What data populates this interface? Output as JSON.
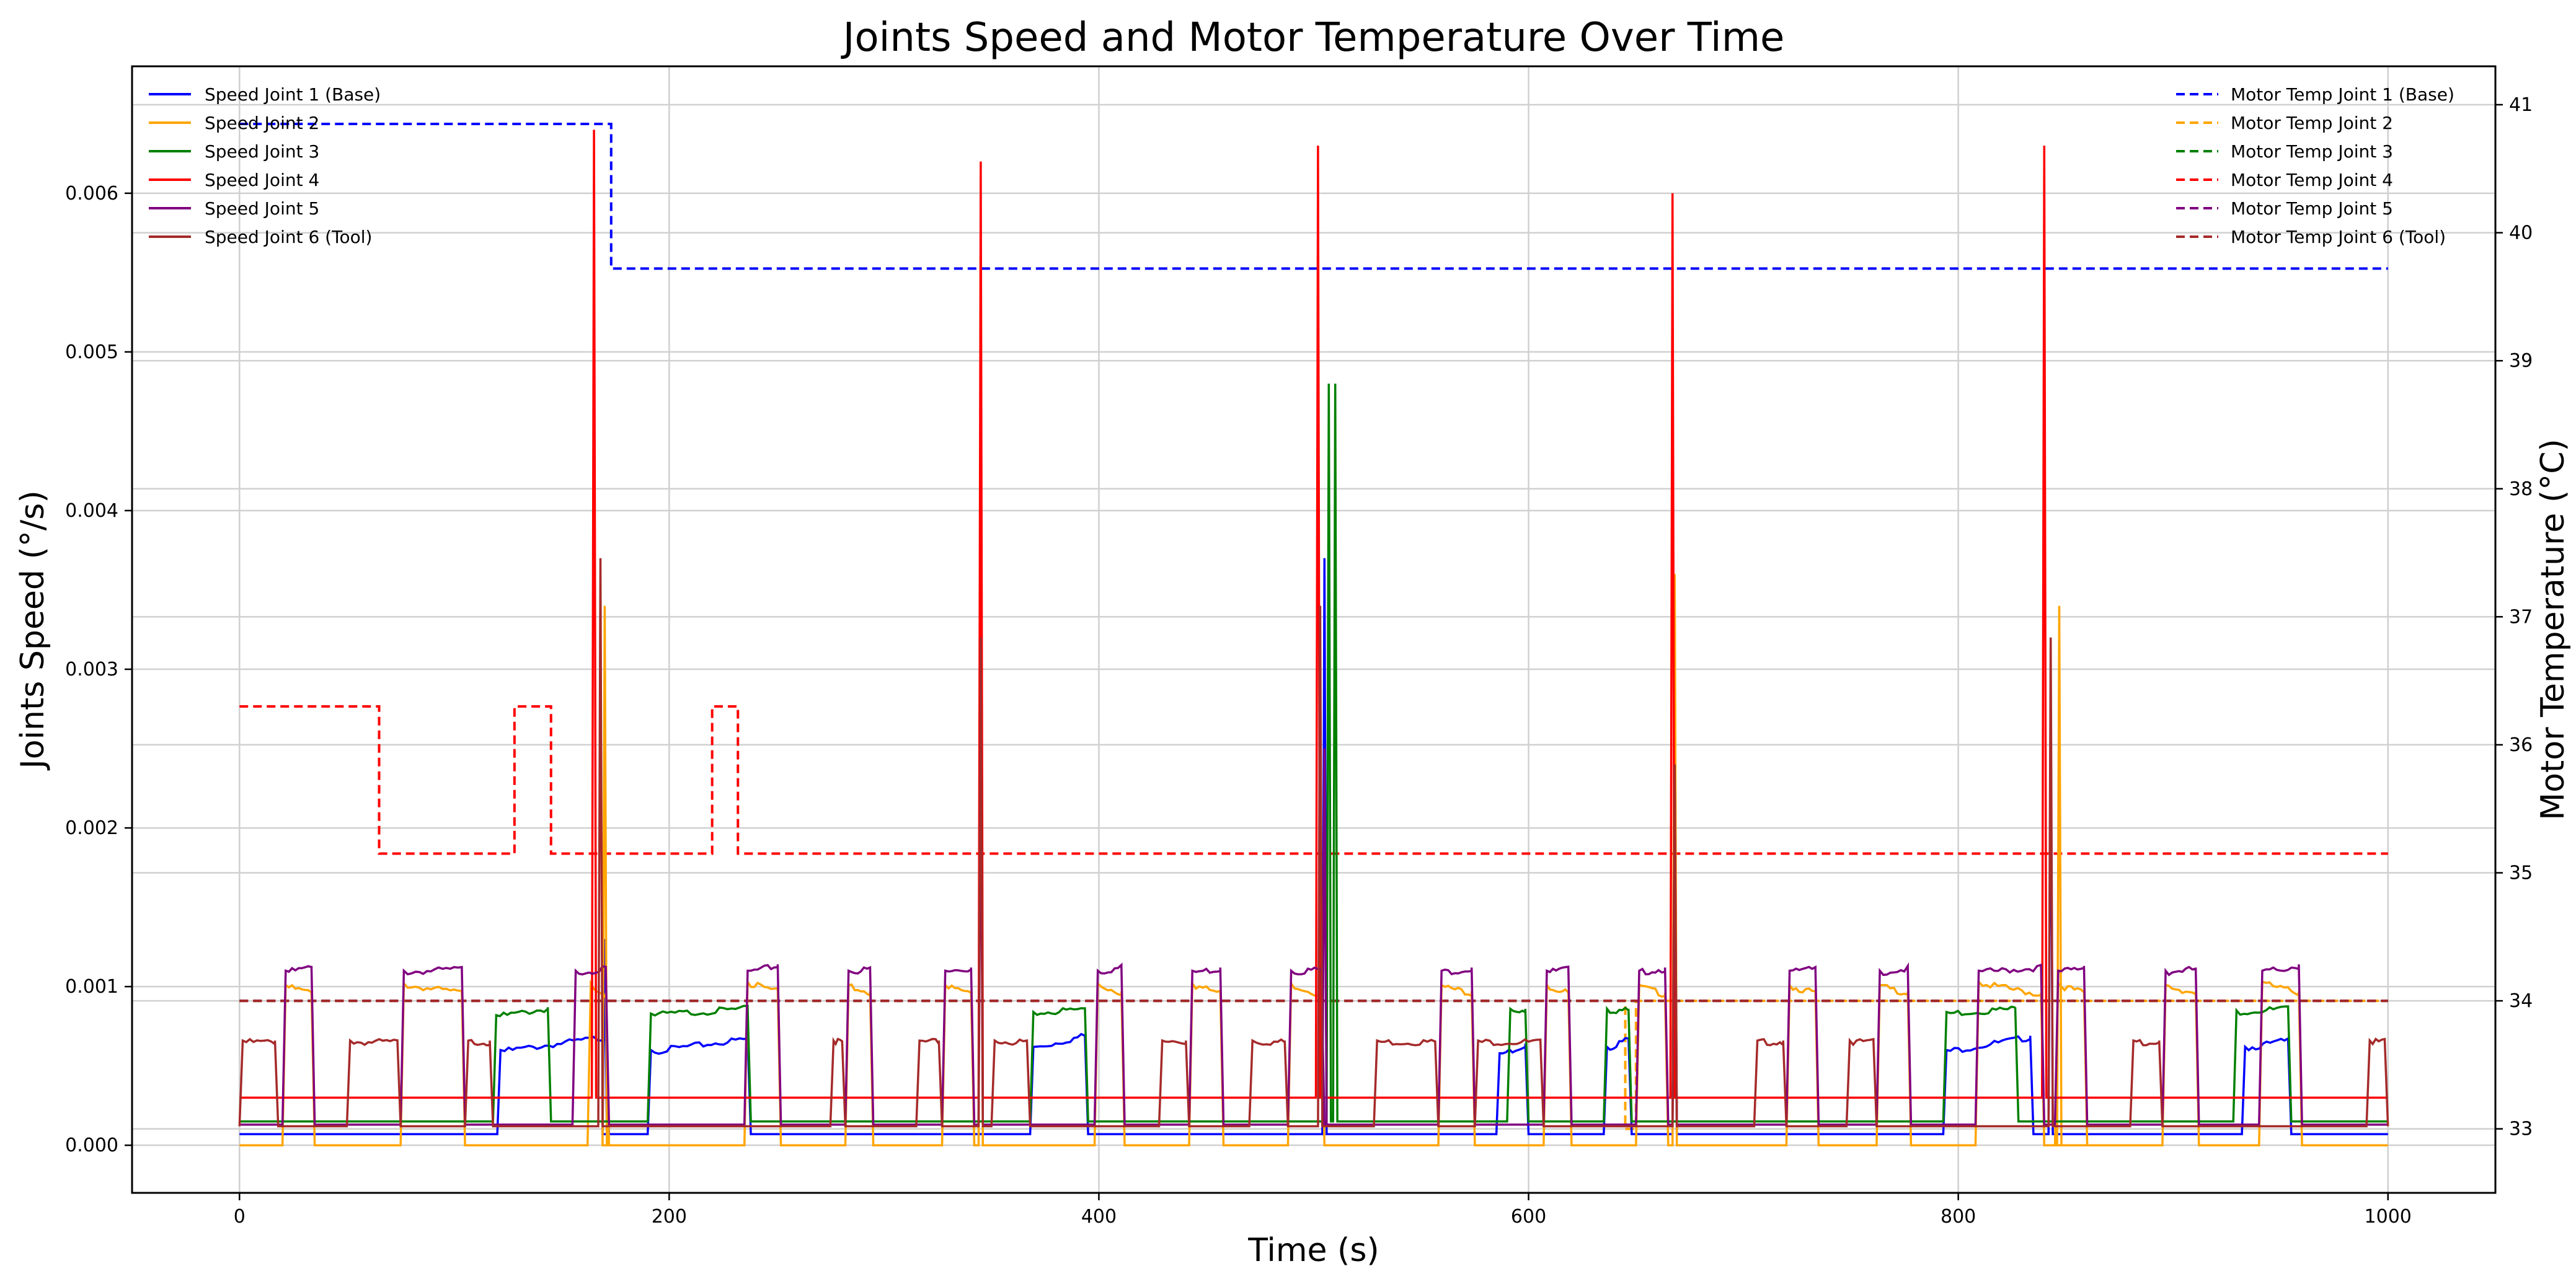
{
  "chart_data": {
    "type": "line",
    "title": "Joints Speed and Motor Temperature Over Time",
    "xlabel": "Time (s)",
    "ylabel_left": "Joints Speed (°/s)",
    "ylabel_right": "Motor Temperature (°C)",
    "xlim": [
      -50,
      1050
    ],
    "ylim_left": [
      -0.0003,
      0.0068
    ],
    "ylim_right": [
      32.5,
      41.3
    ],
    "xticks": [
      "0",
      "200",
      "400",
      "600",
      "800",
      "1000"
    ],
    "yticks_left": [
      "0.000",
      "0.001",
      "0.002",
      "0.003",
      "0.004",
      "0.005",
      "0.006"
    ],
    "yticks_right": [
      "33",
      "34",
      "35",
      "36",
      "37",
      "38",
      "39",
      "40",
      "41"
    ],
    "grid": true,
    "legend_left_placement": "top-left",
    "legend_right_placement": "top-right",
    "speed_series": [
      {
        "name": "Speed Joint 1 (Base)",
        "color": "#0000ff",
        "blocks": [
          [
            120,
            172,
            0.0006,
            0.00069
          ],
          [
            190,
            238,
            0.0006,
            0.00068
          ],
          [
            368,
            395,
            0.00062,
            0.0007
          ],
          [
            585,
            600,
            0.00058,
            0.00064
          ],
          [
            635,
            648,
            0.00062,
            0.00068
          ],
          [
            793,
            835,
            0.0006,
            0.00069
          ],
          [
            932,
            955,
            0.00062,
            0.00067
          ]
        ],
        "low": 7e-05,
        "spikes": [
          [
            170,
            0.0013
          ],
          [
            505,
            0.0037
          ],
          [
            668,
            0.0022
          ],
          [
            843,
            0.0028
          ]
        ]
      },
      {
        "name": "Speed Joint 2",
        "color": "#ffa500",
        "blocks": [
          [
            20,
            35,
            0.00101,
            0.00097
          ],
          [
            75,
            105,
            0.00102,
            0.00097
          ],
          [
            162,
            172,
            0.00102,
            0.00096
          ],
          [
            235,
            252,
            0.00103,
            0.00098
          ],
          [
            282,
            295,
            0.00101,
            0.00097
          ],
          [
            327,
            342,
            0.00101,
            0.00097
          ],
          [
            398,
            412,
            0.00102,
            0.00097
          ],
          [
            442,
            458,
            0.00102,
            0.00097
          ],
          [
            488,
            505,
            0.00102,
            0.00096
          ],
          [
            558,
            575,
            0.00101,
            0.00097
          ],
          [
            607,
            620,
            0.00101,
            0.00097
          ],
          [
            650,
            665,
            0.00101,
            0.00096
          ],
          [
            720,
            735,
            0.00101,
            0.00097
          ],
          [
            762,
            778,
            0.00101,
            0.00097
          ],
          [
            808,
            840,
            0.00103,
            0.00096
          ],
          [
            845,
            860,
            0.00102,
            0.00097
          ],
          [
            895,
            912,
            0.00101,
            0.00097
          ],
          [
            940,
            960,
            0.00103,
            0.00097
          ]
        ],
        "low": 0.0,
        "spikes": [
          [
            170,
            0.0034
          ],
          [
            345,
            0.0035
          ],
          [
            668,
            0.0036
          ],
          [
            847,
            0.0034
          ]
        ]
      },
      {
        "name": "Speed Joint 3",
        "color": "#008000",
        "blocks": [
          [
            118,
            145,
            0.00082,
            0.00087
          ],
          [
            190,
            238,
            0.00083,
            0.00087
          ],
          [
            368,
            395,
            0.00084,
            0.00087
          ],
          [
            590,
            600,
            0.00086,
            0.00086
          ],
          [
            635,
            648,
            0.00086,
            0.00086
          ],
          [
            793,
            828,
            0.00084,
            0.00087
          ],
          [
            928,
            955,
            0.00085,
            0.00087
          ]
        ],
        "low": 0.00015,
        "spikes": [
          [
            507,
            0.0048
          ],
          [
            510,
            0.0048
          ]
        ]
      },
      {
        "name": "Speed Joint 4",
        "color": "#ff0000",
        "blocks": [],
        "low": 0.0003,
        "spikes": [
          [
            165,
            0.0064
          ],
          [
            345,
            0.0062
          ],
          [
            502,
            0.0063
          ],
          [
            667,
            0.006
          ],
          [
            840,
            0.0063
          ]
        ]
      },
      {
        "name": "Speed Joint 5",
        "color": "#800080",
        "blocks": [
          [
            20,
            35,
            0.0011,
            0.00113
          ],
          [
            75,
            105,
            0.0011,
            0.00112
          ],
          [
            155,
            172,
            0.0011,
            0.00112
          ],
          [
            235,
            252,
            0.0011,
            0.00114
          ],
          [
            282,
            295,
            0.0011,
            0.00112
          ],
          [
            327,
            342,
            0.0011,
            0.00112
          ],
          [
            398,
            412,
            0.0011,
            0.00113
          ],
          [
            442,
            458,
            0.0011,
            0.00112
          ],
          [
            488,
            505,
            0.0011,
            0.00112
          ],
          [
            558,
            575,
            0.0011,
            0.00112
          ],
          [
            607,
            620,
            0.0011,
            0.00112
          ],
          [
            650,
            665,
            0.0011,
            0.00112
          ],
          [
            720,
            735,
            0.0011,
            0.00112
          ],
          [
            762,
            778,
            0.0011,
            0.00112
          ],
          [
            808,
            840,
            0.0011,
            0.00113
          ],
          [
            845,
            860,
            0.0011,
            0.00113
          ],
          [
            895,
            912,
            0.0011,
            0.00112
          ],
          [
            940,
            960,
            0.0011,
            0.00114
          ]
        ],
        "low": 0.00013,
        "spikes": [
          [
            345,
            0.0025
          ],
          [
            505,
            0.0025
          ],
          [
            668,
            0.0023
          ]
        ]
      },
      {
        "name": "Speed Joint 6 (Tool)",
        "color": "#a52a2a",
        "blocks": [
          [
            0,
            18,
            0.00066,
            0.00066
          ],
          [
            50,
            75,
            0.00066,
            0.00066
          ],
          [
            105,
            118,
            0.00066,
            0.00066
          ],
          [
            275,
            282,
            0.00066,
            0.00066
          ],
          [
            315,
            327,
            0.00066,
            0.00066
          ],
          [
            350,
            368,
            0.00066,
            0.00066
          ],
          [
            428,
            442,
            0.00066,
            0.00066
          ],
          [
            470,
            488,
            0.00066,
            0.00066
          ],
          [
            528,
            558,
            0.00066,
            0.00066
          ],
          [
            575,
            607,
            0.00066,
            0.00066
          ],
          [
            705,
            720,
            0.00066,
            0.00066
          ],
          [
            748,
            762,
            0.00066,
            0.00066
          ],
          [
            880,
            895,
            0.00066,
            0.00066
          ],
          [
            990,
            1000,
            0.00066,
            0.00066
          ]
        ],
        "low": 0.00012,
        "spikes": [
          [
            168,
            0.0037
          ],
          [
            345,
            0.0032
          ],
          [
            503,
            0.0034
          ],
          [
            668,
            0.0024
          ],
          [
            843,
            0.0032
          ]
        ]
      }
    ],
    "temp_series": [
      {
        "name": "Motor Temp Joint 1 (Base)",
        "color": "#0000ff",
        "steps": [
          [
            0,
            40.85
          ],
          [
            173,
            39.72
          ],
          [
            1000,
            39.72
          ]
        ]
      },
      {
        "name": "Motor Temp Joint 2",
        "color": "#ffa500",
        "steps": [
          [
            0,
            34.0
          ],
          [
            645,
            34.0
          ],
          [
            645,
            33.0
          ],
          [
            650,
            33.0
          ],
          [
            650,
            34.0
          ],
          [
            1000,
            34.0
          ]
        ]
      },
      {
        "name": "Motor Temp Joint 3",
        "color": "#008000",
        "steps": [
          [
            0,
            34.0
          ],
          [
            1000,
            34.0
          ]
        ]
      },
      {
        "name": "Motor Temp Joint 4",
        "color": "#ff0000",
        "steps": [
          [
            0,
            36.3
          ],
          [
            65,
            35.15
          ],
          [
            128,
            36.3
          ],
          [
            145,
            35.15
          ],
          [
            220,
            36.3
          ],
          [
            232,
            35.15
          ],
          [
            1000,
            35.15
          ]
        ]
      },
      {
        "name": "Motor Temp Joint 5",
        "color": "#800080",
        "steps": [
          [
            0,
            34.0
          ],
          [
            1000,
            34.0
          ]
        ]
      },
      {
        "name": "Motor Temp Joint 6 (Tool)",
        "color": "#a52a2a",
        "steps": [
          [
            0,
            34.0
          ],
          [
            1000,
            34.0
          ]
        ]
      }
    ]
  }
}
